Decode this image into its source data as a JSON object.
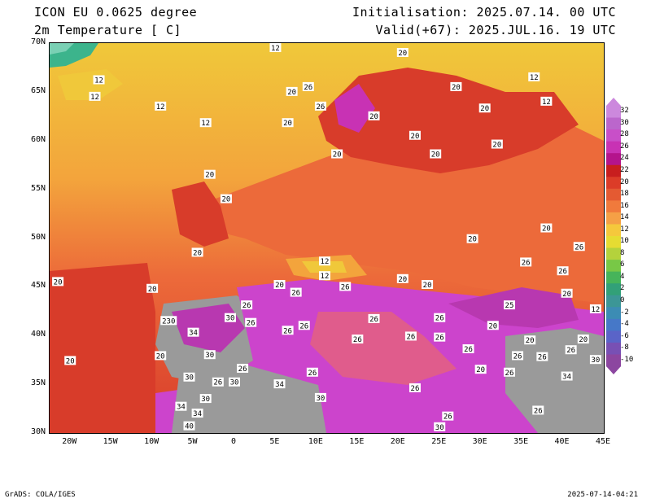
{
  "header": {
    "model": "ICON EU 0.0625 degree",
    "variable": "2m Temperature [ C]",
    "init": "Initialisation: 2025.07.14. 00 UTC",
    "valid": "Valid(+67): 2025.JUL.16. 19 UTC"
  },
  "axes": {
    "lat_labels": [
      "70N",
      "65N",
      "60N",
      "55N",
      "50N",
      "45N",
      "40N",
      "35N",
      "30N"
    ],
    "lon_labels": [
      "20W",
      "15W",
      "10W",
      "5W",
      "0",
      "5E",
      "10E",
      "15E",
      "20E",
      "25E",
      "30E",
      "35E",
      "40E",
      "45E"
    ]
  },
  "colorbar": {
    "levels": [
      "32",
      "30",
      "28",
      "26",
      "24",
      "22",
      "20",
      "18",
      "16",
      "14",
      "12",
      "10",
      "8",
      "6",
      "4",
      "2",
      "0",
      "-2",
      "-4",
      "-6",
      "-8",
      "-10"
    ],
    "colors": [
      "#cc88dd",
      "#bb66cc",
      "#c84fc8",
      "#c832b4",
      "#b4148c",
      "#c81e1e",
      "#dc3c28",
      "#e45a32",
      "#f07a3c",
      "#f5a046",
      "#f5c83c",
      "#e6dc32",
      "#b4d23c",
      "#78c846",
      "#46b45a",
      "#32a078",
      "#3c9696",
      "#3c8cb4",
      "#4678c8",
      "#5a64c8",
      "#7850b4",
      "#8c46a0"
    ]
  },
  "map": {
    "land_colors": {
      "hot": "#cc44cc",
      "warm": "#d83c2a",
      "mild": "#ec6a3a",
      "cool": "#f3a43c",
      "cold": "#f0c83a",
      "vhot": "#b838b0",
      "sea_hot": "#e05c8c",
      "grey": "#9a9a9a"
    },
    "value_labels": [
      {
        "lon": 5.0,
        "lat": 69.5,
        "v": "12"
      },
      {
        "lon": 20.5,
        "lat": 69.0,
        "v": "20"
      },
      {
        "lon": 9.0,
        "lat": 65.5,
        "v": "26"
      },
      {
        "lon": 7.0,
        "lat": 65.0,
        "v": "20"
      },
      {
        "lon": -16.5,
        "lat": 66.2,
        "v": "12"
      },
      {
        "lon": -17.0,
        "lat": 64.5,
        "v": "12"
      },
      {
        "lon": -9.0,
        "lat": 63.5,
        "v": "12"
      },
      {
        "lon": -3.5,
        "lat": 61.8,
        "v": "12"
      },
      {
        "lon": 27.0,
        "lat": 65.5,
        "v": "20"
      },
      {
        "lon": 36.5,
        "lat": 66.5,
        "v": "12"
      },
      {
        "lon": 38.0,
        "lat": 64.0,
        "v": "12"
      },
      {
        "lon": 30.5,
        "lat": 63.3,
        "v": "20"
      },
      {
        "lon": 10.5,
        "lat": 63.5,
        "v": "26"
      },
      {
        "lon": 6.5,
        "lat": 61.8,
        "v": "20"
      },
      {
        "lon": 17.0,
        "lat": 62.5,
        "v": "20"
      },
      {
        "lon": 22.0,
        "lat": 60.5,
        "v": "20"
      },
      {
        "lon": 32.0,
        "lat": 59.6,
        "v": "20"
      },
      {
        "lon": 12.5,
        "lat": 58.6,
        "v": "20"
      },
      {
        "lon": 24.5,
        "lat": 58.6,
        "v": "20"
      },
      {
        "lon": -3.0,
        "lat": 56.5,
        "v": "20"
      },
      {
        "lon": -1.0,
        "lat": 54.0,
        "v": "20"
      },
      {
        "lon": 38.0,
        "lat": 51.0,
        "v": "20"
      },
      {
        "lon": 29.0,
        "lat": 49.9,
        "v": "20"
      },
      {
        "lon": 42.0,
        "lat": 49.1,
        "v": "26"
      },
      {
        "lon": -4.5,
        "lat": 48.5,
        "v": "20"
      },
      {
        "lon": 11.0,
        "lat": 47.6,
        "v": "12"
      },
      {
        "lon": 11.0,
        "lat": 46.1,
        "v": "12"
      },
      {
        "lon": 35.5,
        "lat": 47.5,
        "v": "26"
      },
      {
        "lon": 40.0,
        "lat": 46.6,
        "v": "26"
      },
      {
        "lon": -21.5,
        "lat": 45.5,
        "v": "20"
      },
      {
        "lon": -10.0,
        "lat": 44.8,
        "v": "20"
      },
      {
        "lon": 5.5,
        "lat": 45.2,
        "v": "20"
      },
      {
        "lon": 7.5,
        "lat": 44.4,
        "v": "26"
      },
      {
        "lon": 13.5,
        "lat": 45.0,
        "v": "26"
      },
      {
        "lon": 20.5,
        "lat": 45.8,
        "v": "20"
      },
      {
        "lon": 23.5,
        "lat": 45.2,
        "v": "20"
      },
      {
        "lon": 40.5,
        "lat": 44.3,
        "v": "20"
      },
      {
        "lon": 44.0,
        "lat": 42.7,
        "v": "12"
      },
      {
        "lon": 33.5,
        "lat": 43.1,
        "v": "25"
      },
      {
        "lon": 1.5,
        "lat": 43.1,
        "v": "26"
      },
      {
        "lon": -0.5,
        "lat": 41.8,
        "v": "30"
      },
      {
        "lon": -8.0,
        "lat": 41.5,
        "v": "230"
      },
      {
        "lon": 2.0,
        "lat": 41.3,
        "v": "26"
      },
      {
        "lon": 6.5,
        "lat": 40.5,
        "v": "26"
      },
      {
        "lon": 8.5,
        "lat": 41.0,
        "v": "26"
      },
      {
        "lon": 15.0,
        "lat": 39.6,
        "v": "26"
      },
      {
        "lon": 17.0,
        "lat": 41.7,
        "v": "26"
      },
      {
        "lon": 25.0,
        "lat": 41.8,
        "v": "26"
      },
      {
        "lon": 31.5,
        "lat": 41.0,
        "v": "20"
      },
      {
        "lon": 21.5,
        "lat": 39.9,
        "v": "26"
      },
      {
        "lon": 25.0,
        "lat": 39.8,
        "v": "26"
      },
      {
        "lon": -5.0,
        "lat": 40.3,
        "v": "34"
      },
      {
        "lon": 36.0,
        "lat": 39.5,
        "v": "20"
      },
      {
        "lon": 42.5,
        "lat": 39.6,
        "v": "20"
      },
      {
        "lon": 28.5,
        "lat": 38.6,
        "v": "26"
      },
      {
        "lon": 34.5,
        "lat": 37.9,
        "v": "26"
      },
      {
        "lon": 37.5,
        "lat": 37.8,
        "v": "26"
      },
      {
        "lon": 41.0,
        "lat": 38.5,
        "v": "26"
      },
      {
        "lon": 44.0,
        "lat": 37.5,
        "v": "30"
      },
      {
        "lon": -20.0,
        "lat": 37.4,
        "v": "20"
      },
      {
        "lon": -9.0,
        "lat": 37.9,
        "v": "20"
      },
      {
        "lon": -3.0,
        "lat": 38.0,
        "v": "30"
      },
      {
        "lon": 30.0,
        "lat": 36.5,
        "v": "20"
      },
      {
        "lon": 33.5,
        "lat": 36.2,
        "v": "26"
      },
      {
        "lon": 1.0,
        "lat": 36.6,
        "v": "26"
      },
      {
        "lon": 9.5,
        "lat": 36.2,
        "v": "26"
      },
      {
        "lon": -5.5,
        "lat": 35.7,
        "v": "30"
      },
      {
        "lon": -2.0,
        "lat": 35.2,
        "v": "26"
      },
      {
        "lon": 0.0,
        "lat": 35.2,
        "v": "30"
      },
      {
        "lon": 5.5,
        "lat": 35.0,
        "v": "34"
      },
      {
        "lon": 40.5,
        "lat": 35.8,
        "v": "34"
      },
      {
        "lon": 22.0,
        "lat": 34.6,
        "v": "26"
      },
      {
        "lon": -3.5,
        "lat": 33.5,
        "v": "30"
      },
      {
        "lon": 10.5,
        "lat": 33.6,
        "v": "30"
      },
      {
        "lon": -6.5,
        "lat": 32.7,
        "v": "34"
      },
      {
        "lon": -4.5,
        "lat": 32.0,
        "v": "34"
      },
      {
        "lon": 26.0,
        "lat": 31.7,
        "v": "26"
      },
      {
        "lon": 37.0,
        "lat": 32.3,
        "v": "26"
      },
      {
        "lon": -5.5,
        "lat": 30.7,
        "v": "40"
      },
      {
        "lon": 25.0,
        "lat": 30.6,
        "v": "30"
      }
    ]
  },
  "footer": {
    "left": "GrADS: COLA/IGES",
    "right": "2025-07-14-04:21"
  }
}
